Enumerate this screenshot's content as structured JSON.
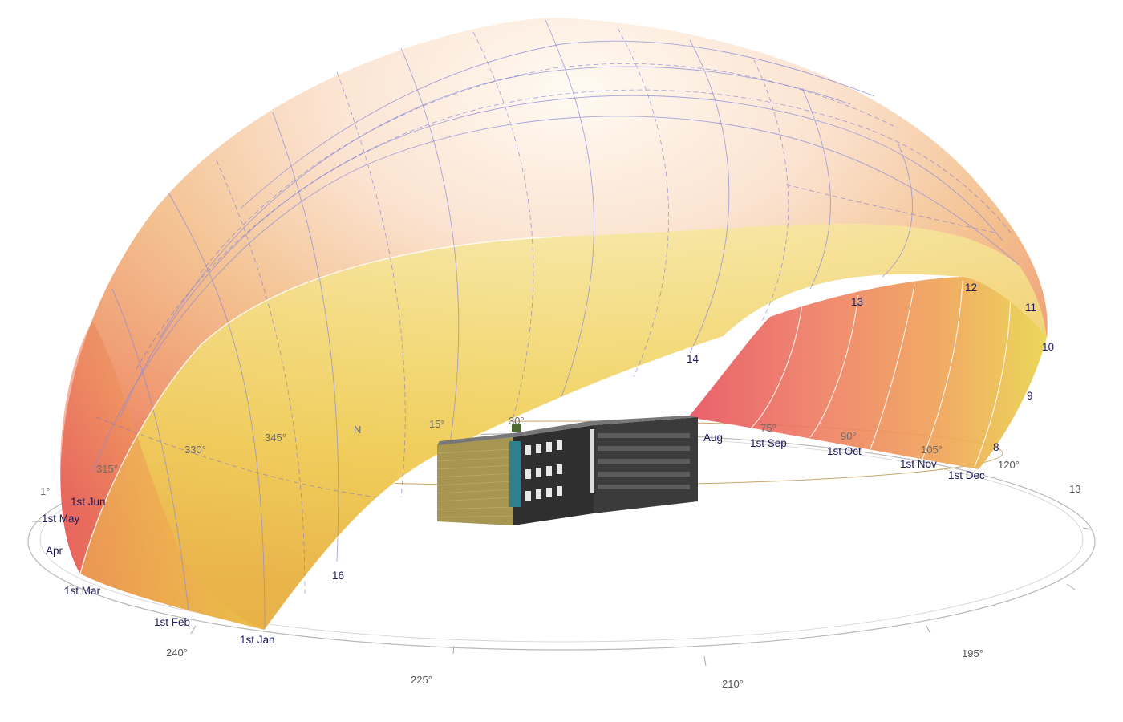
{
  "diagram": {
    "month_labels": [
      "1st Jan",
      "1st Feb",
      "1st Mar",
      "Apr",
      "1st May",
      "1st Jun",
      "Aug",
      "1st Sep",
      "1st Oct",
      "1st Nov",
      "1st Dec"
    ],
    "hour_labels": [
      "16",
      "14",
      "13",
      "12",
      "11",
      "10",
      "9",
      "8",
      "13"
    ],
    "outer_degree_labels": [
      "240°",
      "225°",
      "210°",
      "195°",
      "120°"
    ],
    "inner_compass_labels": [
      "315°",
      "330°",
      "345°",
      "N",
      "15°",
      "30°",
      "75°",
      "90°",
      "105°",
      "1°"
    ],
    "colors": {
      "dome_outer_red": "#e8505a",
      "dome_mid_orange": "#f1a05a",
      "dome_inner_yellow": "#e9d64a",
      "dome_top_white": "#fff7ee",
      "grid_line": "#8a8ad8",
      "month_text": "#1a1a5c",
      "degree_text": "#555555",
      "building_dark": "#3a3a3a",
      "glazing_teal": "#2e7f8f"
    }
  }
}
